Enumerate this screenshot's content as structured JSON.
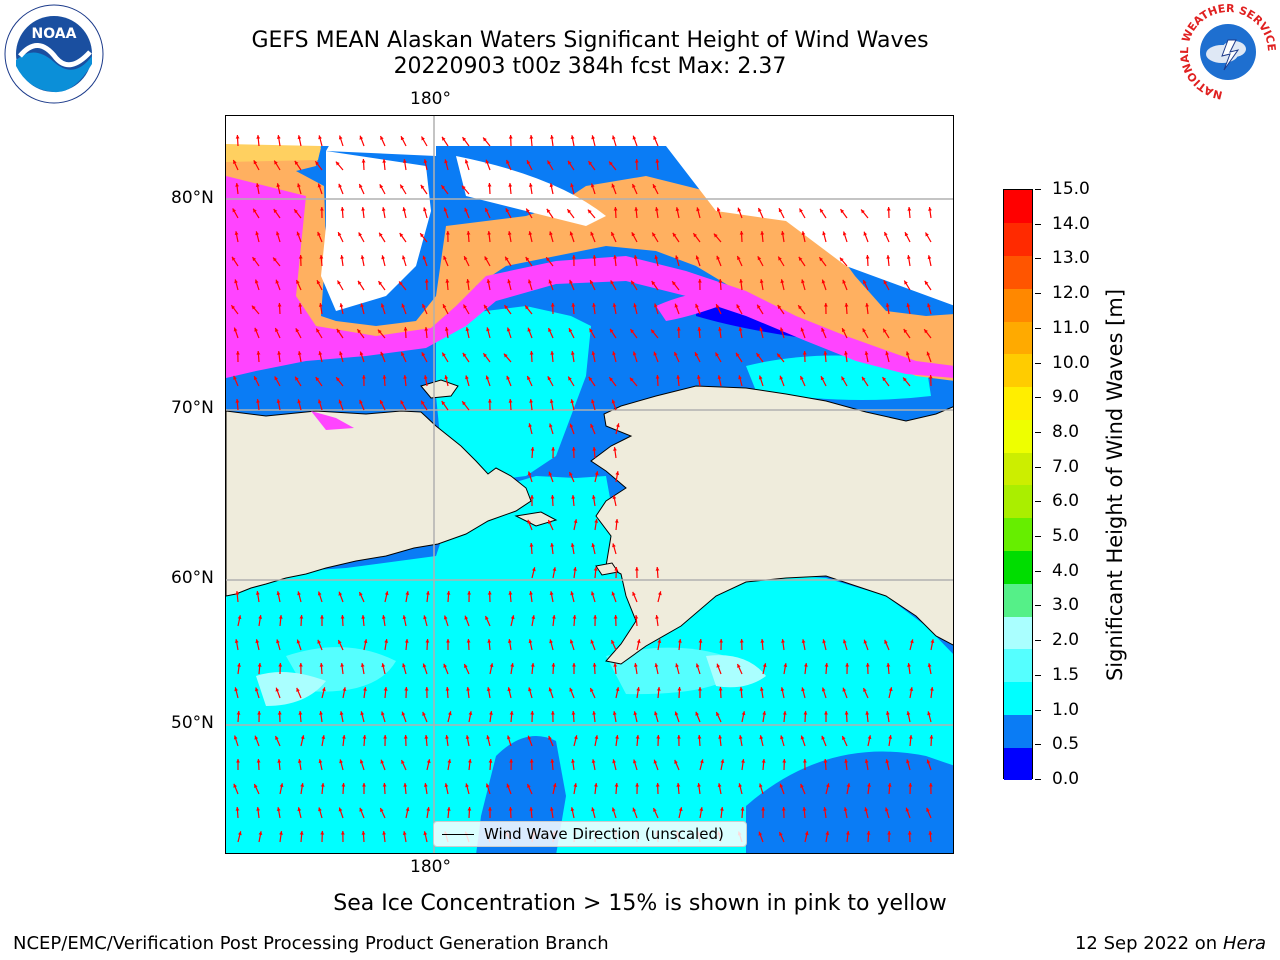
{
  "header": {
    "title_line1": "GEFS MEAN Alaskan Waters Significant Height of Wind Waves",
    "title_line2": "20220903 t00z 384h fcst   Max: 2.37"
  },
  "map": {
    "top_lon_label": "180°",
    "bottom_lon_label": "180°",
    "lat_labels": [
      "80°N",
      "70°N",
      "60°N",
      "50°N"
    ],
    "legend_label": "Wind Wave Direction (unscaled)",
    "land_color": "#efecdc",
    "ice_colors": [
      "#ff44ff",
      "#ffb060",
      "#ffd060"
    ],
    "arrow_color": "#ff0000",
    "grid": true
  },
  "colorbar": {
    "title": "Significant Height of Wind Waves [m]",
    "ticks": [
      "15.0",
      "14.0",
      "13.0",
      "12.0",
      "11.0",
      "10.0",
      "9.0",
      "8.0",
      "7.0",
      "6.0",
      "5.0",
      "4.0",
      "3.0",
      "2.0",
      "1.5",
      "1.0",
      "0.5",
      "0.0"
    ],
    "colors": [
      "#0000ff",
      "#0a7cf5",
      "#00ffff",
      "#55ffff",
      "#aaffff",
      "#55f088",
      "#00dd00",
      "#66ee00",
      "#aaee00",
      "#ccee00",
      "#eeff00",
      "#ffee00",
      "#ffcc00",
      "#ffaa00",
      "#ff8800",
      "#ff5500",
      "#ff2a00",
      "#ff0000"
    ]
  },
  "footer": {
    "ice_note": "Sea Ice Concentration > 15% is shown in pink to yellow",
    "left": "NCEP/EMC/Verification Post Processing Product Generation Branch",
    "date": "12 Sep 2022 on",
    "host": "Hera"
  },
  "logos": {
    "noaa_text": "NOAA",
    "nws_ring_text": "NATIONAL WEATHER SERVICE"
  }
}
